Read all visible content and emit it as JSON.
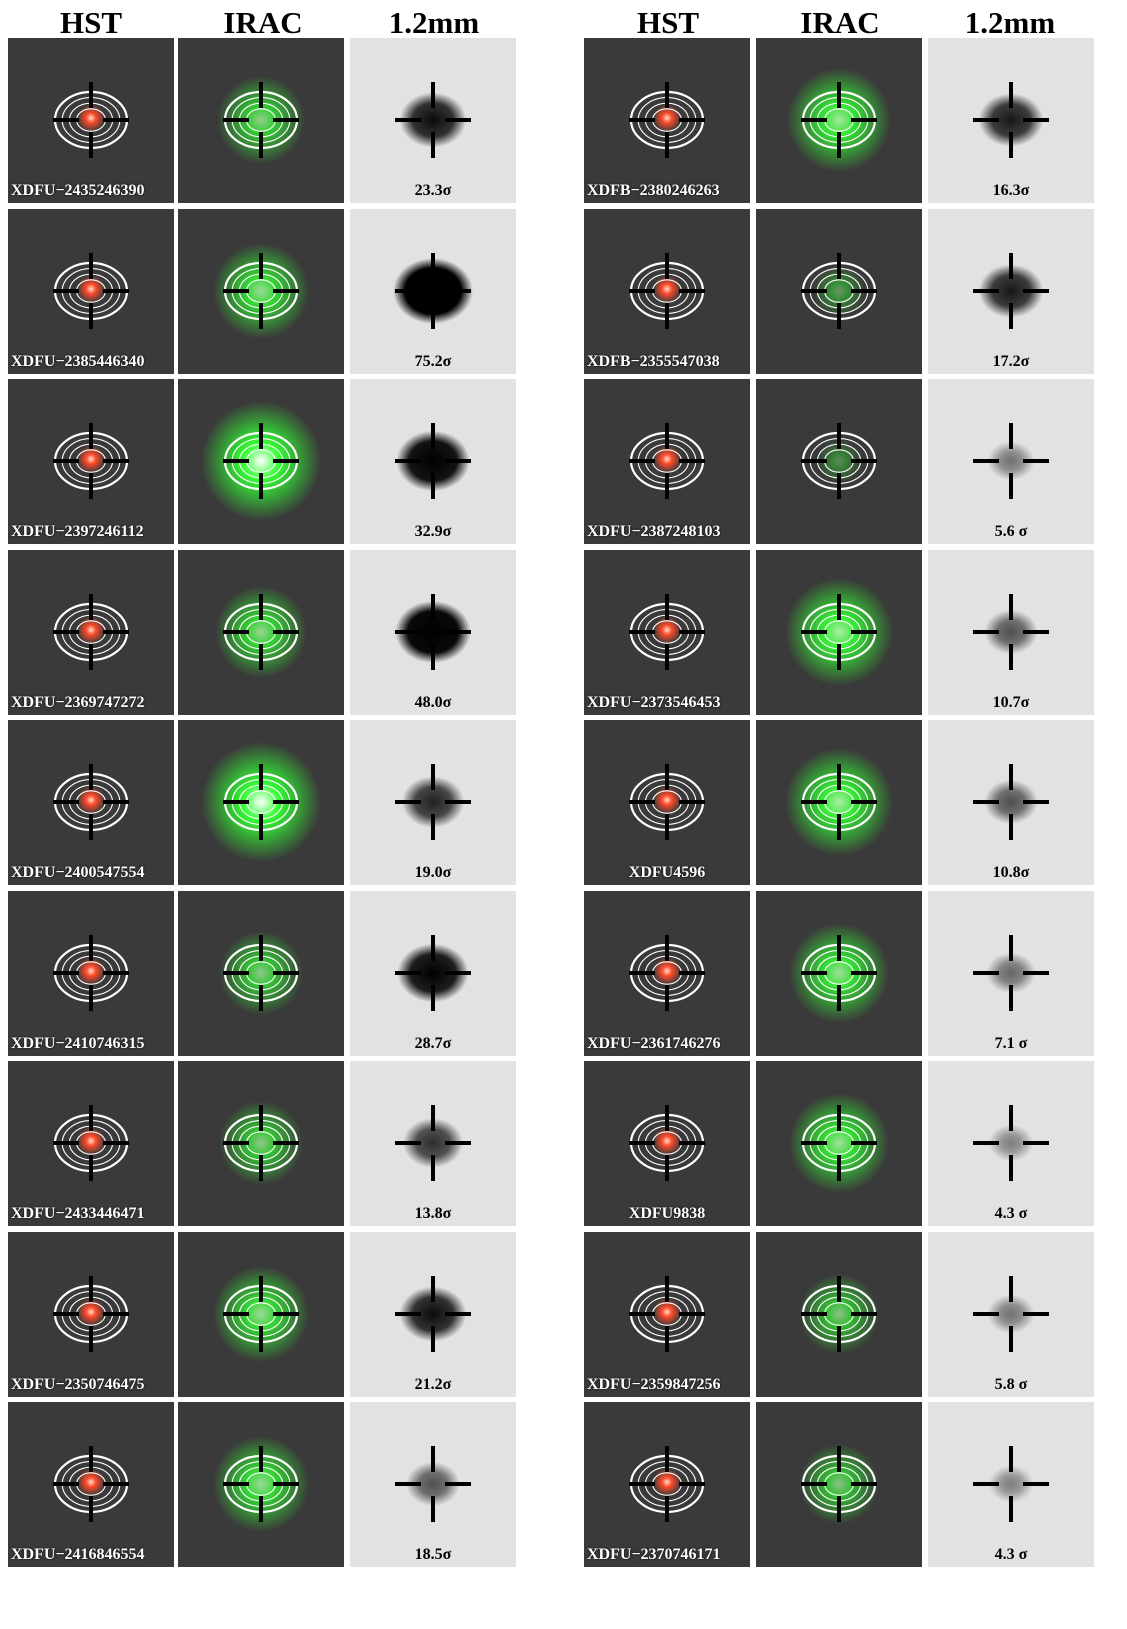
{
  "column_headers": [
    "HST",
    "IRAC",
    "1.2mm",
    "HST",
    "IRAC",
    "1.2mm"
  ],
  "colors": {
    "hst_bg": "#3a3a3a",
    "irac_bg": "#3a3a3a",
    "irac_glow": "#33ff33",
    "mm_bg": "#e2e2e2",
    "contour": "#ffffff",
    "hst_source": "#ff4a2a",
    "crosshair_dark": "#000000"
  },
  "columns": [
    {
      "rows": [
        {
          "name": "XDFU−2435246390",
          "sigma": "23.3σ",
          "label_align": "left"
        },
        {
          "name": "XDFU−2385446340",
          "sigma": "75.2σ",
          "label_align": "left"
        },
        {
          "name": "XDFU−2397246112",
          "sigma": "32.9σ",
          "label_align": "left"
        },
        {
          "name": "XDFU−2369747272",
          "sigma": "48.0σ",
          "label_align": "left"
        },
        {
          "name": "XDFU−2400547554",
          "sigma": "19.0σ",
          "label_align": "left"
        },
        {
          "name": "XDFU−2410746315",
          "sigma": "28.7σ",
          "label_align": "left"
        },
        {
          "name": "XDFU−2433446471",
          "sigma": "13.8σ",
          "label_align": "left"
        },
        {
          "name": "XDFU−2350746475",
          "sigma": "21.2σ",
          "label_align": "left"
        },
        {
          "name": "XDFU−2416846554",
          "sigma": "18.5σ",
          "label_align": "left"
        }
      ]
    },
    {
      "rows": [
        {
          "name": "XDFB−2380246263",
          "sigma": "16.3σ",
          "label_align": "left"
        },
        {
          "name": "XDFB−2355547038",
          "sigma": "17.2σ",
          "label_align": "left"
        },
        {
          "name": "XDFU−2387248103",
          "sigma": "5.6 σ",
          "label_align": "left"
        },
        {
          "name": "XDFU−2373546453",
          "sigma": "10.7σ",
          "label_align": "left"
        },
        {
          "name": "XDFU4596",
          "sigma": "10.8σ",
          "label_align": "center"
        },
        {
          "name": "XDFU−2361746276",
          "sigma": "7.1 σ",
          "label_align": "left"
        },
        {
          "name": "XDFU9838",
          "sigma": "4.3 σ",
          "label_align": "center"
        },
        {
          "name": "XDFU−2359847256",
          "sigma": "5.8 σ",
          "label_align": "left"
        },
        {
          "name": "XDFU−2370746171",
          "sigma": "4.3 σ",
          "label_align": "left"
        }
      ]
    }
  ],
  "mm_strength": [
    [
      0.7,
      1.0,
      0.85,
      0.9,
      0.6,
      0.8,
      0.55,
      0.7,
      0.4
    ],
    [
      0.65,
      0.65,
      0.25,
      0.4,
      0.4,
      0.3,
      0.2,
      0.25,
      0.2
    ]
  ],
  "irac_strength": [
    [
      0.6,
      0.7,
      1.0,
      0.65,
      1.0,
      0.55,
      0.55,
      0.7,
      0.7
    ],
    [
      0.8,
      0.15,
      0.05,
      0.85,
      0.85,
      0.75,
      0.75,
      0.5,
      0.5
    ]
  ]
}
